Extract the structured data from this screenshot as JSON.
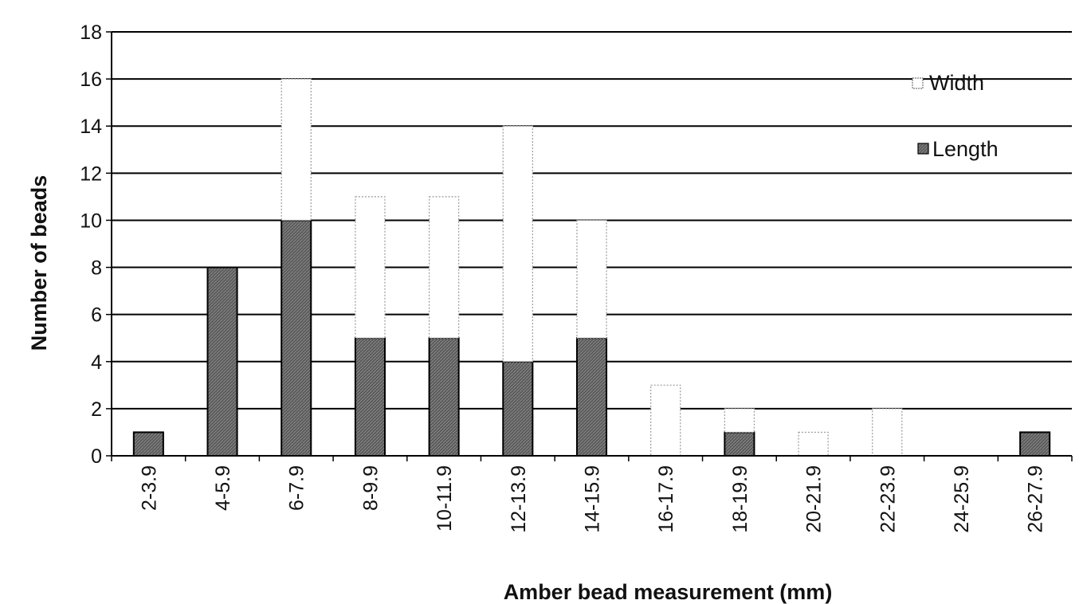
{
  "chart_data": {
    "type": "bar",
    "stacked": true,
    "categories": [
      "2-3.9",
      "4-5.9",
      "6-7.9",
      "8-9.9",
      "10-11.9",
      "12-13.9",
      "14-15.9",
      "16-17.9",
      "18-19.9",
      "20-21.9",
      "22-23.9",
      "24-25.9",
      "26-27.9"
    ],
    "series": [
      {
        "name": "Length",
        "values": [
          1,
          8,
          10,
          5,
          5,
          4,
          5,
          0,
          1,
          0,
          0,
          0,
          1
        ],
        "color": "#555555"
      },
      {
        "name": "Width",
        "values": [
          0,
          0,
          6,
          6,
          6,
          10,
          5,
          3,
          1,
          1,
          2,
          0,
          0
        ],
        "color": "#ffffff"
      }
    ],
    "xlabel": "Amber bead measurement (mm)",
    "ylabel": "Number of beads",
    "ylim": [
      0,
      18
    ],
    "yticks": [
      0,
      2,
      4,
      6,
      8,
      10,
      12,
      14,
      16,
      18
    ],
    "grid": true,
    "legend_position": "top-right"
  }
}
